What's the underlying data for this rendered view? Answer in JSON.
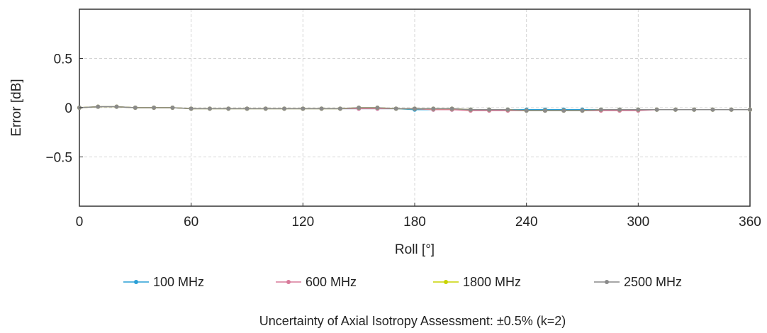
{
  "chart_data": {
    "type": "line",
    "xlabel": "Roll [°]",
    "ylabel": "Error [dB]",
    "xlim": [
      0,
      360
    ],
    "ylim": [
      -1,
      1
    ],
    "xticks": [
      0,
      60,
      120,
      180,
      240,
      300,
      360
    ],
    "xtick_labels": [
      "0",
      "60",
      "120",
      "180",
      "240",
      "300",
      "360"
    ],
    "yticks": [
      0.5,
      0,
      -0.5
    ],
    "ytick_labels": [
      "0.5",
      "0",
      "−0.5"
    ],
    "grid": true,
    "legend_position": "bottom",
    "x": [
      0,
      10,
      20,
      30,
      40,
      50,
      60,
      70,
      80,
      90,
      100,
      110,
      120,
      130,
      140,
      150,
      160,
      170,
      180,
      190,
      200,
      210,
      220,
      230,
      240,
      250,
      260,
      270,
      280,
      290,
      300,
      310,
      320,
      330,
      340,
      350,
      360
    ],
    "series": [
      {
        "name": "100 MHz",
        "color": "#2a9fd6",
        "values": [
          0.0,
          0.01,
          0.01,
          0.0,
          0.0,
          0.0,
          -0.01,
          -0.01,
          -0.01,
          -0.01,
          -0.01,
          -0.01,
          -0.01,
          -0.01,
          -0.01,
          -0.01,
          -0.01,
          -0.01,
          -0.02,
          -0.02,
          -0.02,
          -0.02,
          -0.02,
          -0.02,
          -0.02,
          -0.02,
          -0.02,
          -0.02,
          -0.02,
          -0.02,
          -0.02,
          -0.02,
          -0.02,
          -0.02,
          -0.02,
          -0.02,
          -0.02
        ]
      },
      {
        "name": "600 MHz",
        "color": "#d87a9a",
        "values": [
          0.0,
          0.01,
          0.01,
          0.0,
          0.0,
          0.0,
          -0.01,
          -0.01,
          -0.01,
          -0.01,
          -0.01,
          -0.01,
          -0.01,
          -0.01,
          -0.01,
          -0.01,
          -0.01,
          -0.01,
          -0.01,
          -0.02,
          -0.02,
          -0.03,
          -0.03,
          -0.03,
          -0.03,
          -0.03,
          -0.03,
          -0.03,
          -0.03,
          -0.03,
          -0.03,
          -0.02,
          -0.02,
          -0.02,
          -0.02,
          -0.02,
          -0.02
        ]
      },
      {
        "name": "1800 MHz",
        "color": "#c8d400",
        "values": [
          0.0,
          0.01,
          0.01,
          0.0,
          0.0,
          0.0,
          -0.01,
          -0.01,
          -0.01,
          -0.01,
          -0.01,
          -0.01,
          -0.01,
          -0.01,
          -0.01,
          0.0,
          0.0,
          -0.01,
          -0.01,
          -0.01,
          -0.01,
          -0.02,
          -0.02,
          -0.02,
          -0.03,
          -0.03,
          -0.03,
          -0.03,
          -0.02,
          -0.02,
          -0.02,
          -0.02,
          -0.02,
          -0.02,
          -0.02,
          -0.02,
          -0.02
        ]
      },
      {
        "name": "2500 MHz",
        "color": "#8a8a8a",
        "values": [
          0.0,
          0.01,
          0.01,
          0.0,
          0.0,
          0.0,
          -0.01,
          -0.01,
          -0.01,
          -0.01,
          -0.01,
          -0.01,
          -0.01,
          -0.01,
          -0.01,
          0.0,
          0.0,
          -0.01,
          -0.01,
          -0.01,
          -0.01,
          -0.02,
          -0.02,
          -0.02,
          -0.03,
          -0.03,
          -0.03,
          -0.03,
          -0.02,
          -0.02,
          -0.02,
          -0.02,
          -0.02,
          -0.02,
          -0.02,
          -0.02,
          -0.02
        ]
      }
    ]
  },
  "caption": "Uncertainty of Axial Isotropy Assessment: ±0.5% (k=2)"
}
